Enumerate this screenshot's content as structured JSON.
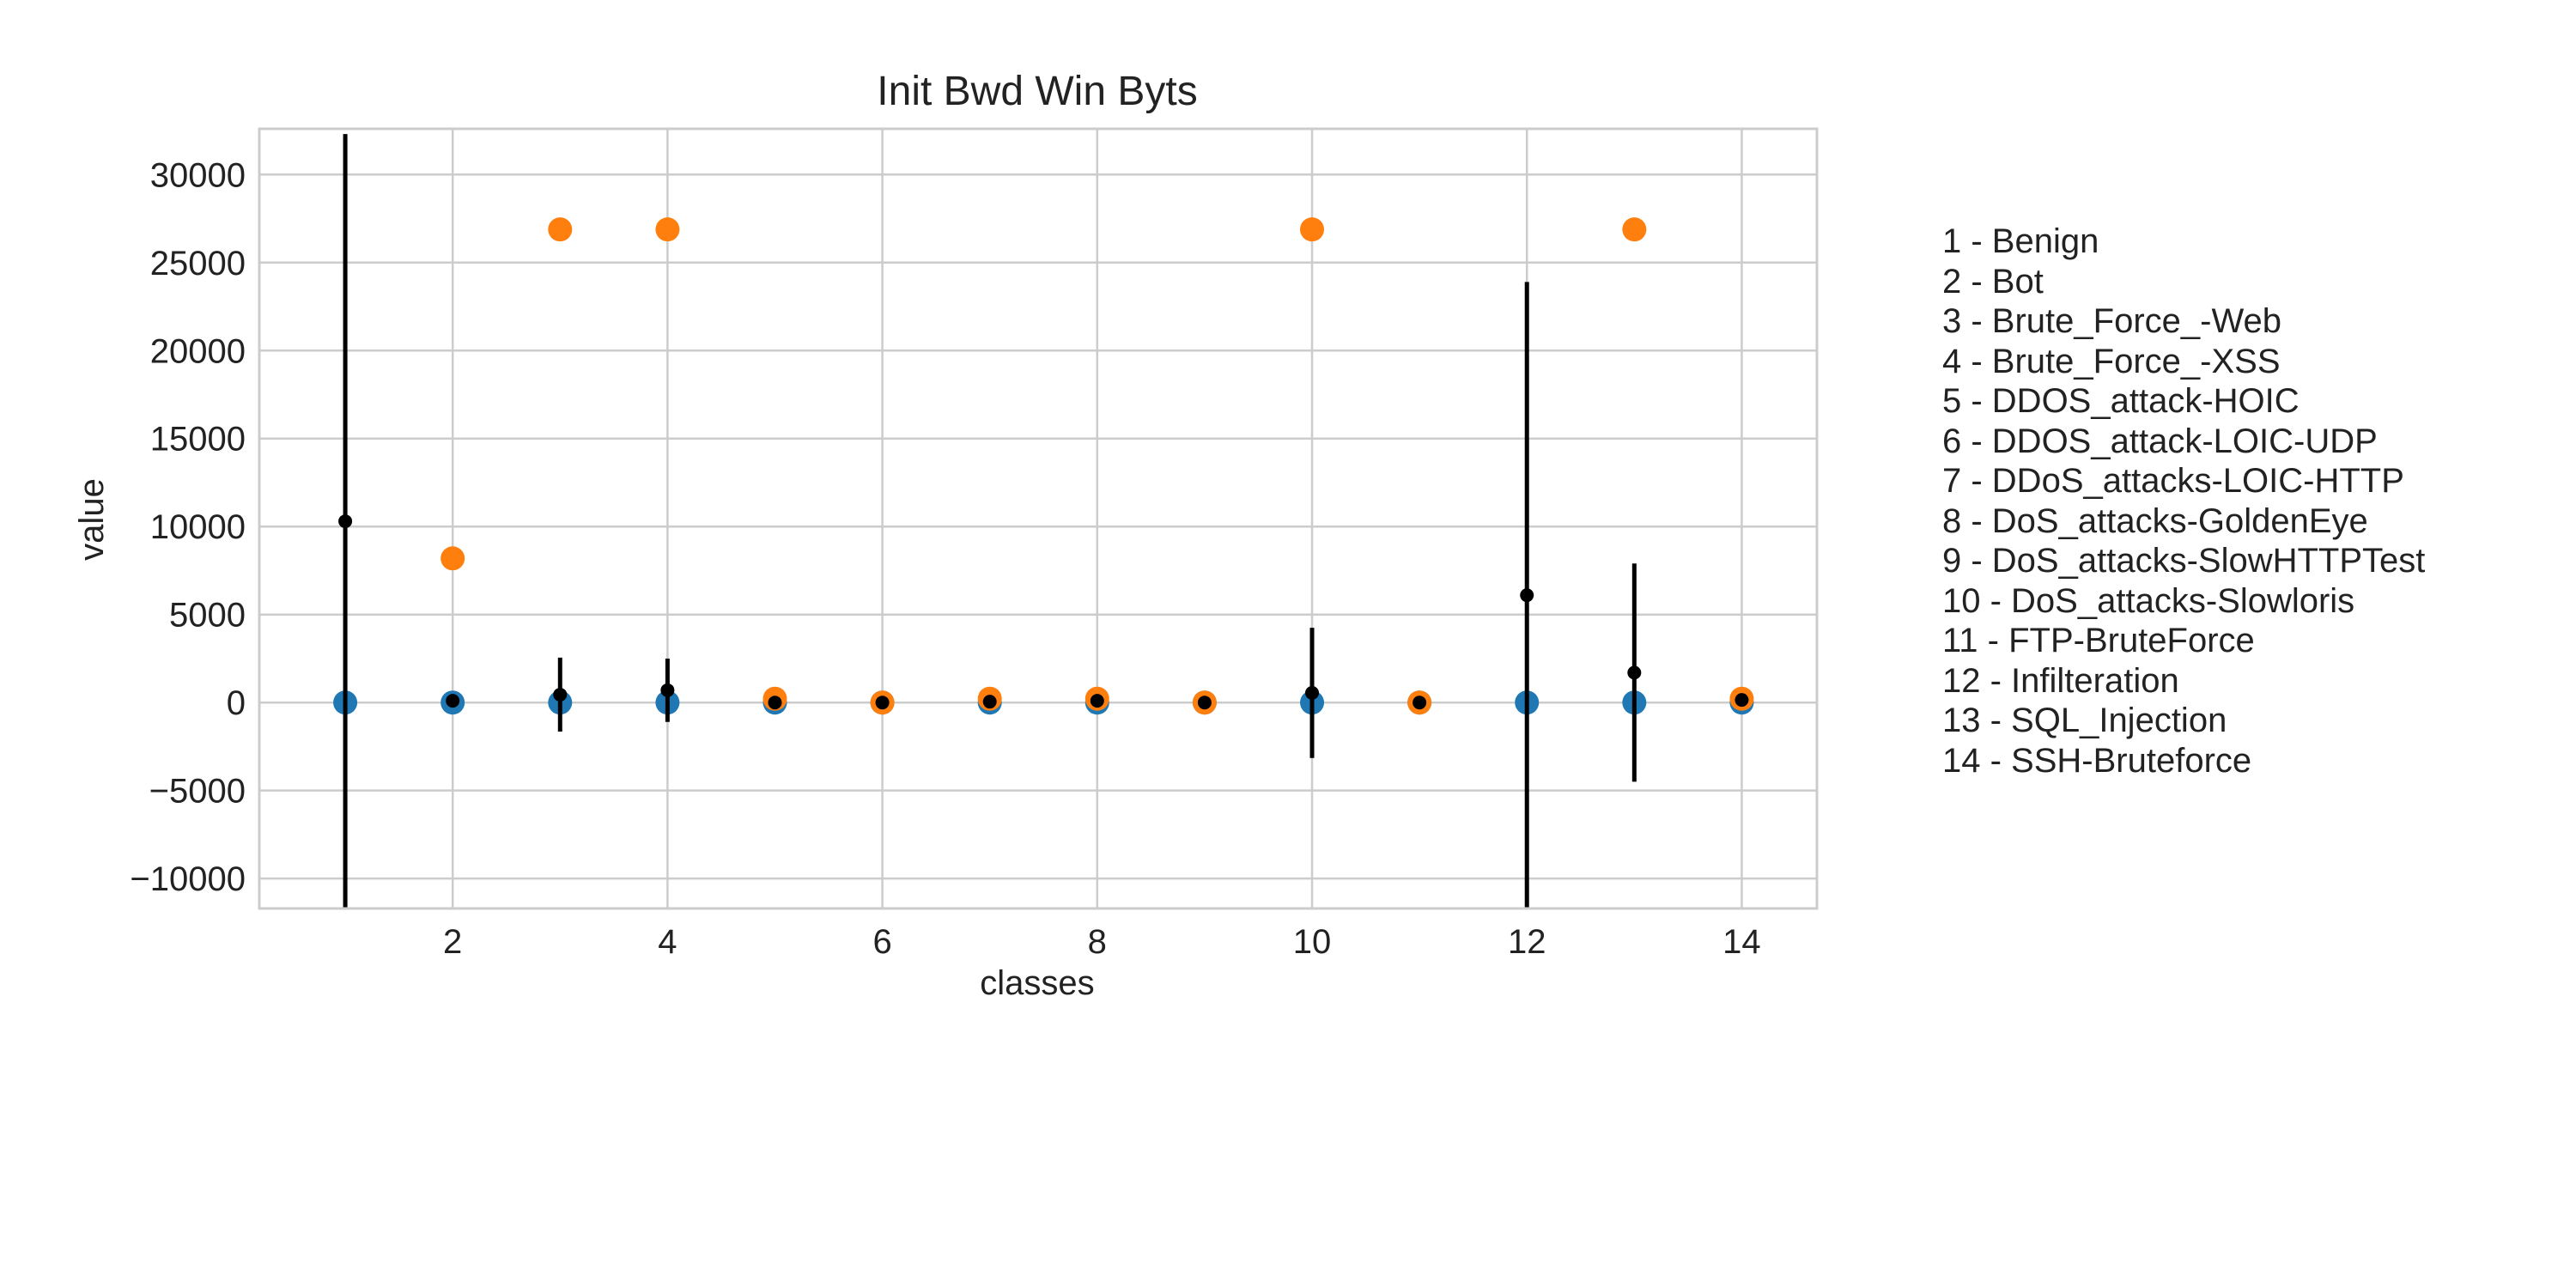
{
  "chart_data": {
    "type": "scatter",
    "title": "Init Bwd Win Byts",
    "xlabel": "classes",
    "ylabel": "value",
    "xlim": [
      0.2,
      14.7
    ],
    "ylim": [
      -11700,
      32600
    ],
    "x_ticks": [
      2,
      4,
      6,
      8,
      10,
      12,
      14
    ],
    "x_tick_labels": [
      "2",
      "4",
      "6",
      "8",
      "10",
      "12",
      "14"
    ],
    "y_ticks": [
      -10000,
      -5000,
      0,
      5000,
      10000,
      15000,
      20000,
      25000,
      30000
    ],
    "y_tick_labels": [
      "−10000",
      "−5000",
      "0",
      "5000",
      "10000",
      "15000",
      "20000",
      "25000",
      "30000"
    ],
    "grid": true,
    "legend_position": "right",
    "series": [
      {
        "kind": "min",
        "color": "#1f77b4",
        "x": [
          1,
          2,
          3,
          4,
          5,
          6,
          7,
          8,
          9,
          10,
          11,
          12,
          13,
          14
        ],
        "values": [
          0,
          0,
          0,
          0,
          0,
          0,
          0,
          0,
          0,
          0,
          0,
          0,
          0,
          0
        ]
      },
      {
        "kind": "max",
        "color": "#ff7f0e",
        "x": [
          2,
          3,
          4,
          5,
          6,
          7,
          8,
          9,
          10,
          11,
          13,
          14
        ],
        "values": [
          8192,
          26883,
          26883,
          219,
          0,
          219,
          219,
          0,
          26883,
          0,
          26883,
          219
        ]
      },
      {
        "kind": "mean_std",
        "color": "#000000",
        "x": [
          1,
          2,
          3,
          4,
          5,
          6,
          7,
          8,
          9,
          10,
          11,
          12,
          13,
          14
        ],
        "values": [
          10300,
          100,
          450,
          700,
          0,
          0,
          50,
          100,
          0,
          550,
          0,
          6100,
          1700,
          150
        ],
        "errors": [
          22000,
          0,
          2100,
          1800,
          0,
          0,
          0,
          0,
          0,
          3700,
          0,
          17800,
          6200,
          0
        ]
      }
    ],
    "legend": [
      "1 - Benign",
      "2 - Bot",
      "3 - Brute_Force_-Web",
      "4 - Brute_Force_-XSS",
      "5 - DDOS_attack-HOIC",
      "6 - DDOS_attack-LOIC-UDP",
      "7 - DDoS_attacks-LOIC-HTTP",
      "8 - DoS_attacks-GoldenEye",
      "9 - DoS_attacks-SlowHTTPTest",
      "10 - DoS_attacks-Slowloris",
      "11 - FTP-BruteForce",
      "12 - Infilteration",
      "13 - SQL_Injection",
      "14 - SSH-Bruteforce"
    ]
  }
}
